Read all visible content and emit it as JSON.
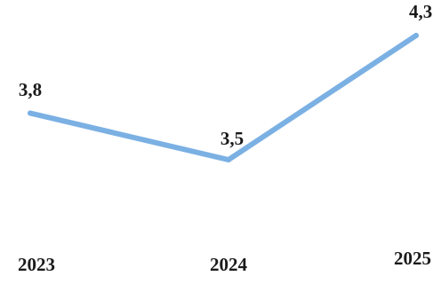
{
  "chart_data": {
    "type": "line",
    "categories": [
      "2023",
      "2024",
      "2025"
    ],
    "values": [
      3.8,
      3.5,
      4.3
    ],
    "value_labels": [
      "3,8",
      "3,5",
      "4,3"
    ],
    "line_color": "#7bb0e3",
    "grid": false,
    "legend": "none"
  }
}
